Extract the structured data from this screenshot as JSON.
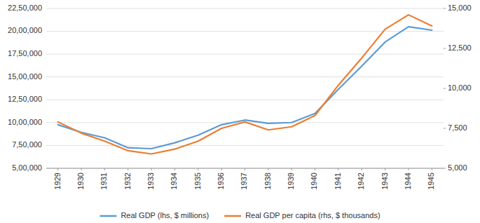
{
  "chart_data": {
    "type": "line",
    "x": [
      1929,
      1930,
      1931,
      1932,
      1933,
      1934,
      1935,
      1936,
      1937,
      1938,
      1939,
      1940,
      1941,
      1942,
      1943,
      1944,
      1945
    ],
    "xlim": [
      1928.5,
      1945.5
    ],
    "xticks": [
      1929,
      1930,
      1931,
      1932,
      1933,
      1934,
      1935,
      1936,
      1937,
      1938,
      1939,
      1940,
      1941,
      1942,
      1943,
      1944,
      1945
    ],
    "ylim": [
      500000,
      2250000
    ],
    "yticks": [
      {
        "value": 500000,
        "label": "5,00,000"
      },
      {
        "value": 750000,
        "label": "7,50,000"
      },
      {
        "value": 1000000,
        "label": "10,00,000"
      },
      {
        "value": 1250000,
        "label": "12,50,000"
      },
      {
        "value": 1500000,
        "label": "15,00,000"
      },
      {
        "value": 1750000,
        "label": "17,50,000"
      },
      {
        "value": 2000000,
        "label": "20,00,000"
      },
      {
        "value": 2250000,
        "label": "22,50,000"
      }
    ],
    "y2lim": [
      5000,
      15000
    ],
    "y2ticks": [
      {
        "value": 5000,
        "label": "5,000"
      },
      {
        "value": 7500,
        "label": "7,500"
      },
      {
        "value": 10000,
        "label": "10,000"
      },
      {
        "value": 12500,
        "label": "12,500"
      },
      {
        "value": 15000,
        "label": "15,000"
      }
    ],
    "series": [
      {
        "name": "Real GDP (lhs, $ millions)",
        "color": "#5B9BD5",
        "values": [
          977000,
          893000,
          834000,
          725000,
          715000,
          779000,
          863000,
          977000,
          1028000,
          992000,
          1001000,
          1100000,
          1366000,
          1618000,
          1882000,
          2050000,
          2012000
        ]
      },
      {
        "name": "Real GDP per capita (rhs, $ thousands)",
        "color": "#ED7D31",
        "axis": "y2",
        "values": [
          7900,
          7200,
          6700,
          6100,
          5900,
          6200,
          6700,
          7500,
          7900,
          7400,
          7600,
          8300,
          10200,
          11900,
          13700,
          14600,
          13900
        ]
      }
    ],
    "grid": true,
    "legend": "bottom"
  }
}
